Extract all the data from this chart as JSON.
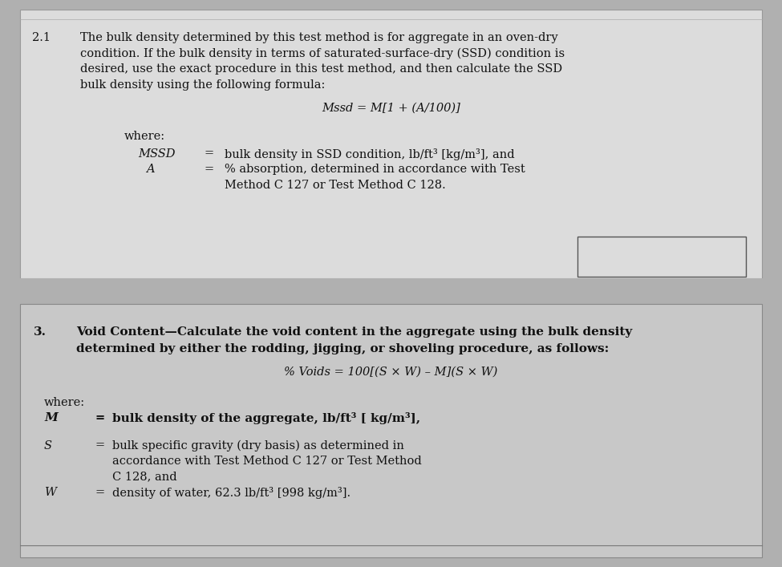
{
  "fig_width": 9.75,
  "fig_height": 7.07,
  "bg_color": "#b0b0b0",
  "top_panel_bg": "#dcdcdc",
  "bottom_panel_bg": "#c8c8c8",
  "top_panel": {
    "section": "2.1",
    "para_lines": [
      "The bulk density determined by this test method is for aggregate in an oven-dry",
      "condition. If the bulk density in terms of saturated-surface-dry (SSD) condition is",
      "desired, use the exact procedure in this test method, and then calculate the SSD",
      "bulk density using the following formula:"
    ],
    "formula": "Mssd = M[1 + (A/100)]",
    "where_label": "where:",
    "var1_name": "MSSD",
    "var1_eq": "=",
    "var1_def": "bulk density in SSD condition, lb/ft³ [kg/m³], and",
    "var2_name": "A",
    "var2_eq": "=",
    "var2_def_line1": "% absorption, determined in accordance with Test",
    "var2_def_line2": "Method C 127 or Test Method C 128."
  },
  "bottom_panel": {
    "section": "3.",
    "heading_line1": "Void Content—Calculate the void content in the aggregate using the bulk density",
    "heading_line2": "determined by either the rodding, jigging, or shoveling procedure, as follows:",
    "formula": "% Voids = 100[(S × W) – M](S × W)",
    "where_label": "where:",
    "var1_name": "M",
    "var1_eq": "=",
    "var1_def": "bulk density of the aggregate, lb/ft³ [ kg/m³],",
    "var2_name": "S",
    "var2_eq": "=",
    "var2_def_line1": "bulk specific gravity (dry basis) as determined in",
    "var2_def_line2": "accordance with Test Method C 127 or Test Method",
    "var2_def_line3": "C 128, and",
    "var3_name": "W",
    "var3_eq": "=",
    "var3_def": "density of water, 62.3 lb/ft³ [998 kg/m³]."
  },
  "fs": 10.5
}
